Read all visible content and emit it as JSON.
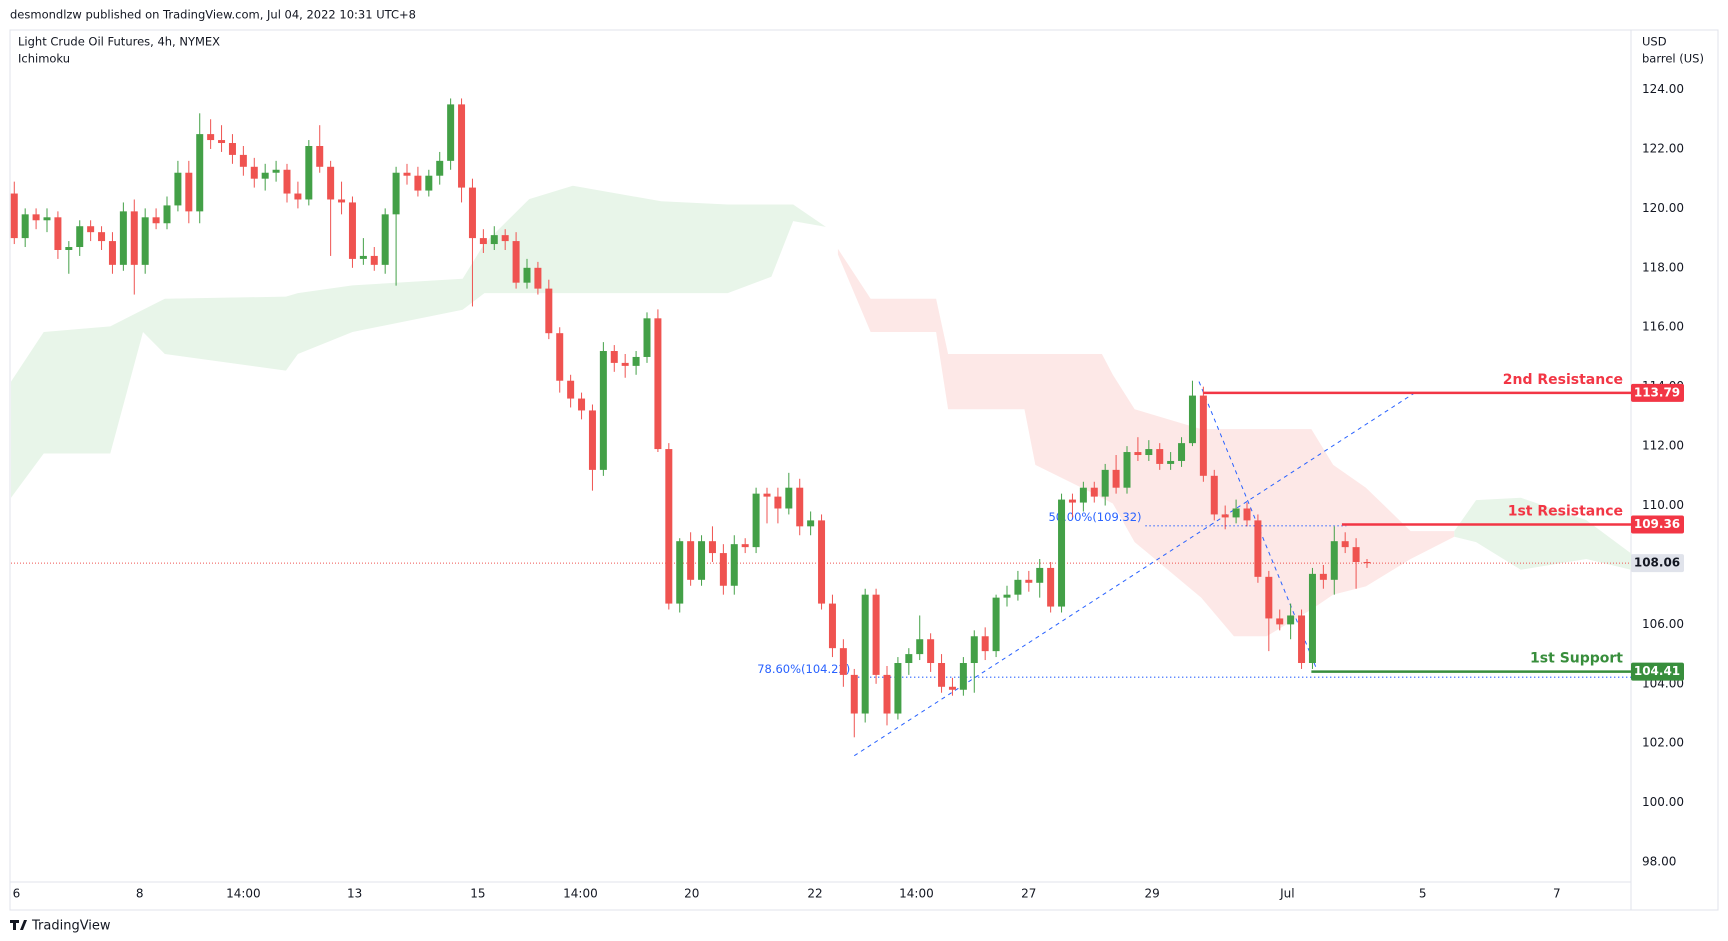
{
  "header": {
    "publisher": "desmondlzw published on TradingView.com, Jul 04, 2022 10:31 UTC+8",
    "brand": "TradingView"
  },
  "chart_data": {
    "type": "candlestick",
    "title": "Light Crude Oil Futures, 4h, NYMEX",
    "indicator": "Ichimoku",
    "y_unit": [
      "USD",
      "barrel (US)"
    ],
    "up_color": "#43a047",
    "down_color": "#ef5350",
    "grid": false,
    "ylim": [
      97.33,
      125.97
    ],
    "yticks": [
      {
        "value": 98,
        "label": "98.00"
      },
      {
        "value": 100,
        "label": "100.00"
      },
      {
        "value": 102,
        "label": "102.00"
      },
      {
        "value": 104,
        "label": "104.00"
      },
      {
        "value": 106,
        "label": "106.00"
      },
      {
        "value": 108,
        "label": "108.00"
      },
      {
        "value": 110,
        "label": "110.00"
      },
      {
        "value": 112,
        "label": "112.00"
      },
      {
        "value": 114,
        "label": "114.00"
      },
      {
        "value": 116,
        "label": "116.00"
      },
      {
        "value": 118,
        "label": "118.00"
      },
      {
        "value": 120,
        "label": "120.00"
      },
      {
        "value": 122,
        "label": "122.00"
      },
      {
        "value": 124,
        "label": "124.00"
      }
    ],
    "xlim": [
      -0.3,
      148.2
    ],
    "xticks": [
      {
        "value": 0.2,
        "label": "6"
      },
      {
        "value": 11.5,
        "label": "8"
      },
      {
        "value": 21,
        "label": "14:00"
      },
      {
        "value": 31.2,
        "label": "13"
      },
      {
        "value": 42.5,
        "label": "15"
      },
      {
        "value": 51.9,
        "label": "14:00"
      },
      {
        "value": 62.1,
        "label": "20"
      },
      {
        "value": 73.4,
        "label": "22"
      },
      {
        "value": 82.7,
        "label": "14:00"
      },
      {
        "value": 93,
        "label": "27"
      },
      {
        "value": 104.3,
        "label": "29"
      },
      {
        "value": 116.7,
        "label": "Jul"
      },
      {
        "value": 129.1,
        "label": "5"
      },
      {
        "value": 141.4,
        "label": "7"
      }
    ],
    "candles": [
      [
        120.5,
        120.9,
        118.8,
        119.0
      ],
      [
        119.0,
        120.0,
        118.7,
        119.8
      ],
      [
        119.8,
        120.0,
        119.3,
        119.6
      ],
      [
        119.6,
        120.0,
        119.2,
        119.7
      ],
      [
        119.7,
        119.9,
        118.3,
        118.6
      ],
      [
        118.6,
        118.9,
        117.8,
        118.7
      ],
      [
        118.7,
        119.6,
        118.4,
        119.4
      ],
      [
        119.4,
        119.6,
        118.9,
        119.2
      ],
      [
        119.2,
        119.4,
        118.6,
        118.9
      ],
      [
        118.9,
        119.2,
        117.8,
        118.1
      ],
      [
        118.1,
        120.2,
        117.9,
        119.9
      ],
      [
        119.9,
        120.3,
        117.1,
        118.1
      ],
      [
        118.1,
        120.0,
        117.8,
        119.7
      ],
      [
        119.7,
        120.0,
        119.3,
        119.5
      ],
      [
        119.5,
        120.4,
        119.3,
        120.1
      ],
      [
        120.1,
        121.6,
        119.9,
        121.2
      ],
      [
        121.2,
        121.6,
        119.5,
        119.9
      ],
      [
        119.9,
        123.2,
        119.5,
        122.5
      ],
      [
        122.5,
        123.0,
        122.0,
        122.3
      ],
      [
        122.3,
        122.8,
        121.9,
        122.2
      ],
      [
        122.2,
        122.5,
        121.5,
        121.8
      ],
      [
        121.8,
        122.1,
        121.1,
        121.4
      ],
      [
        121.4,
        121.7,
        120.7,
        121.0
      ],
      [
        121.0,
        121.5,
        120.6,
        121.2
      ],
      [
        121.2,
        121.6,
        120.9,
        121.3
      ],
      [
        121.3,
        121.5,
        120.2,
        120.5
      ],
      [
        120.5,
        120.9,
        120.0,
        120.3
      ],
      [
        120.3,
        122.3,
        120.1,
        122.1
      ],
      [
        122.1,
        122.8,
        121.2,
        121.4
      ],
      [
        121.4,
        121.6,
        118.4,
        120.3
      ],
      [
        120.3,
        120.9,
        119.8,
        120.2
      ],
      [
        120.2,
        120.4,
        118.0,
        118.3
      ],
      [
        118.3,
        119.0,
        118.1,
        118.4
      ],
      [
        118.4,
        118.7,
        117.9,
        118.1
      ],
      [
        118.1,
        120.0,
        117.8,
        119.8
      ],
      [
        119.8,
        121.4,
        117.4,
        121.2
      ],
      [
        121.2,
        121.5,
        120.8,
        121.1
      ],
      [
        121.1,
        121.4,
        120.4,
        120.6
      ],
      [
        120.6,
        121.3,
        120.4,
        121.1
      ],
      [
        121.1,
        121.9,
        120.8,
        121.6
      ],
      [
        121.6,
        123.7,
        121.3,
        123.5
      ],
      [
        123.5,
        123.7,
        120.2,
        120.7
      ],
      [
        120.7,
        121.0,
        116.7,
        119.0
      ],
      [
        119.0,
        119.3,
        118.5,
        118.8
      ],
      [
        118.8,
        119.4,
        118.6,
        119.1
      ],
      [
        119.1,
        119.3,
        118.6,
        118.9
      ],
      [
        118.9,
        119.2,
        117.3,
        117.5
      ],
      [
        117.5,
        118.3,
        117.3,
        118.0
      ],
      [
        118.0,
        118.2,
        117.1,
        117.3
      ],
      [
        117.3,
        117.6,
        115.6,
        115.8
      ],
      [
        115.8,
        116.0,
        113.8,
        114.2
      ],
      [
        114.2,
        114.4,
        113.3,
        113.6
      ],
      [
        113.6,
        113.8,
        112.9,
        113.2
      ],
      [
        113.2,
        113.4,
        110.5,
        111.2
      ],
      [
        111.2,
        115.5,
        111.0,
        115.2
      ],
      [
        115.2,
        115.4,
        114.5,
        114.8
      ],
      [
        114.8,
        115.1,
        114.3,
        114.7
      ],
      [
        114.7,
        115.2,
        114.4,
        115.0
      ],
      [
        115.0,
        116.5,
        114.8,
        116.3
      ],
      [
        116.3,
        116.6,
        111.8,
        111.9
      ],
      [
        111.9,
        112.1,
        106.5,
        106.7
      ],
      [
        106.7,
        108.9,
        106.4,
        108.8
      ],
      [
        108.8,
        109.1,
        107.3,
        107.5
      ],
      [
        107.5,
        109.0,
        107.3,
        108.8
      ],
      [
        108.8,
        109.3,
        108.1,
        108.4
      ],
      [
        108.4,
        108.7,
        107.0,
        107.3
      ],
      [
        107.3,
        109.0,
        107.0,
        108.7
      ],
      [
        108.7,
        108.9,
        108.4,
        108.6
      ],
      [
        108.6,
        110.6,
        108.4,
        110.4
      ],
      [
        110.4,
        110.6,
        109.4,
        110.3
      ],
      [
        110.3,
        110.6,
        109.4,
        109.9
      ],
      [
        109.9,
        111.1,
        109.7,
        110.6
      ],
      [
        110.6,
        110.9,
        109.0,
        109.3
      ],
      [
        109.3,
        109.8,
        109.0,
        109.5
      ],
      [
        109.5,
        109.7,
        106.5,
        106.7
      ],
      [
        106.7,
        107.0,
        104.9,
        105.2
      ],
      [
        105.2,
        105.5,
        103.9,
        104.3
      ],
      [
        104.3,
        104.5,
        102.2,
        103.0
      ],
      [
        103.0,
        107.2,
        102.7,
        107.0
      ],
      [
        107.0,
        107.2,
        104.0,
        104.3
      ],
      [
        104.3,
        104.6,
        102.6,
        103.0
      ],
      [
        103.0,
        104.9,
        102.8,
        104.7
      ],
      [
        104.7,
        105.2,
        104.3,
        105.0
      ],
      [
        105.0,
        106.3,
        104.8,
        105.5
      ],
      [
        105.5,
        105.7,
        104.4,
        104.7
      ],
      [
        104.7,
        105.0,
        103.7,
        103.9
      ],
      [
        103.9,
        104.2,
        103.6,
        103.8
      ],
      [
        103.8,
        104.9,
        103.6,
        104.7
      ],
      [
        104.7,
        105.8,
        103.7,
        105.6
      ],
      [
        105.6,
        105.9,
        104.8,
        105.1
      ],
      [
        105.1,
        107.0,
        104.9,
        106.9
      ],
      [
        106.9,
        107.3,
        106.6,
        107.0
      ],
      [
        107.0,
        107.8,
        106.8,
        107.5
      ],
      [
        107.5,
        107.8,
        107.1,
        107.4
      ],
      [
        107.4,
        108.2,
        106.9,
        107.9
      ],
      [
        107.9,
        108.1,
        106.4,
        106.6
      ],
      [
        106.6,
        110.4,
        106.4,
        110.2
      ],
      [
        110.2,
        110.4,
        109.6,
        110.1
      ],
      [
        110.1,
        110.8,
        109.8,
        110.6
      ],
      [
        110.6,
        110.8,
        110.1,
        110.3
      ],
      [
        110.3,
        111.4,
        110.0,
        111.2
      ],
      [
        111.2,
        111.7,
        110.4,
        110.6
      ],
      [
        110.6,
        112.0,
        110.4,
        111.8
      ],
      [
        111.8,
        112.3,
        111.5,
        111.7
      ],
      [
        111.7,
        112.2,
        111.5,
        111.9
      ],
      [
        111.9,
        112.1,
        111.2,
        111.4
      ],
      [
        111.4,
        111.8,
        111.2,
        111.5
      ],
      [
        111.5,
        112.3,
        111.3,
        112.1
      ],
      [
        112.1,
        114.2,
        112.0,
        113.7
      ],
      [
        113.7,
        114.0,
        110.8,
        111.0
      ],
      [
        111.0,
        111.2,
        109.5,
        109.7
      ],
      [
        109.7,
        110.0,
        109.2,
        109.6
      ],
      [
        109.6,
        110.2,
        109.4,
        109.9
      ],
      [
        109.9,
        110.1,
        109.3,
        109.5
      ],
      [
        109.5,
        109.7,
        107.4,
        107.6
      ],
      [
        107.6,
        107.8,
        105.1,
        106.2
      ],
      [
        106.2,
        106.5,
        105.8,
        106.0
      ],
      [
        106.0,
        106.7,
        105.5,
        106.3
      ],
      [
        106.3,
        106.5,
        104.5,
        104.7
      ],
      [
        104.7,
        107.9,
        104.5,
        107.7
      ],
      [
        107.7,
        108.0,
        107.2,
        107.5
      ],
      [
        107.5,
        109.3,
        107.0,
        108.8
      ],
      [
        108.8,
        109.1,
        108.4,
        108.6
      ],
      [
        108.6,
        108.9,
        107.2,
        108.1
      ],
      [
        108.1,
        108.2,
        107.9,
        108.06
      ]
    ],
    "clouds": [
      {
        "color": "#e8f5e9",
        "x": [
          -0.3,
          2.7,
          8.8,
          11.8,
          13.8,
          24.9,
          26.0,
          31.0,
          41.1,
          43.1,
          47.2,
          51.2,
          59.3,
          65.4,
          69.4,
          71.4,
          74.4
        ],
        "upper": [
          114.17,
          115.84,
          116.03,
          116.59,
          116.96,
          117.03,
          117.15,
          117.41,
          117.63,
          118.82,
          120.31,
          120.76,
          120.24,
          120.13,
          120.13,
          120.13,
          119.38
        ],
        "lower": [
          110.26,
          111.75,
          111.75,
          115.84,
          115.1,
          114.54,
          115.1,
          115.84,
          116.59,
          117.15,
          117.15,
          117.15,
          117.15,
          117.15,
          117.7,
          119.57,
          119.38
        ]
      },
      {
        "color": "#fde8e7",
        "x": [
          75.5,
          78.5,
          84.5,
          85.6,
          92.6,
          93.6,
          99.7,
          100.7,
          102.7,
          108.8,
          111.8,
          114.8,
          118.9,
          120.9,
          123.9,
          128.0,
          132.0
        ],
        "upper": [
          118.64,
          116.96,
          116.96,
          115.1,
          115.1,
          115.1,
          115.1,
          114.4,
          113.24,
          112.57,
          112.57,
          112.57,
          112.57,
          111.37,
          110.6,
          109.14,
          109.14
        ],
        "lower": [
          118.45,
          115.84,
          115.84,
          113.24,
          113.24,
          111.37,
          110.26,
          110.07,
          108.77,
          106.9,
          105.6,
          105.6,
          106.5,
          107.0,
          107.28,
          108.2,
          108.95
        ]
      },
      {
        "color": "#e8f5e9",
        "x": [
          132.0,
          134.0,
          138.1,
          144.1,
          148.2
        ],
        "upper": [
          109.14,
          110.18,
          110.26,
          109.51,
          108.39
        ],
        "lower": [
          108.95,
          108.77,
          107.84,
          108.2,
          107.84
        ]
      }
    ],
    "levels": [
      {
        "name": "2nd Resistance",
        "value": 113.79,
        "from": 109.0,
        "color": "#f23645"
      },
      {
        "name": "1st Resistance",
        "value": 109.36,
        "from": 121.7,
        "color": "#f23645"
      },
      {
        "name": "1st Support",
        "value": 104.41,
        "from": 118.9,
        "color": "#388e3c"
      }
    ],
    "fib_levels": [
      {
        "label": "50.00%(109.32)",
        "value": 109.32,
        "x": [
          103.7,
          122.1
        ]
      },
      {
        "label": "78.60%(104.22)",
        "value": 104.22,
        "x": [
          77.0,
          148.2
        ]
      }
    ],
    "trendlines": [
      {
        "x": [
          77.0,
          128.7
        ],
        "y": [
          101.58,
          113.87
        ]
      },
      {
        "x": [
          108.6,
          119.4
        ],
        "y": [
          114.17,
          104.48
        ]
      }
    ]
  }
}
